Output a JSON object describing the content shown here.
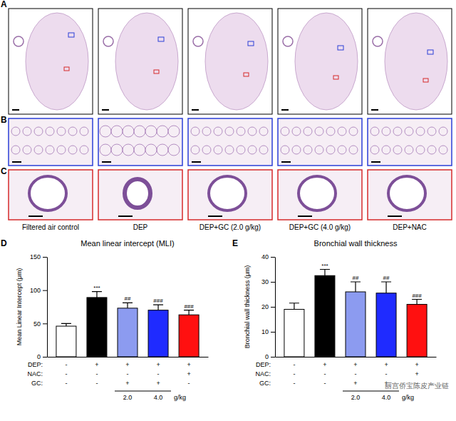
{
  "figure": {
    "panel_labels": [
      "A",
      "B",
      "C",
      "D",
      "E"
    ],
    "group_labels": [
      "Filtered air control",
      "DEP",
      "DEP+GC (2.0 g/kg)",
      "DEP+GC (4.0 g/kg)",
      "DEP+NAC"
    ],
    "watermark": "丽宫侨宝陈皮产业链"
  },
  "chart_data": [
    {
      "type": "bar",
      "title": "Mean linear intercept (MLI)",
      "y_label": "Mean Linear Intercept (μm)",
      "categories": [
        null,
        null,
        null,
        null,
        null
      ],
      "values": [
        46,
        89,
        73,
        70,
        63
      ],
      "errors": [
        4,
        9,
        8,
        8,
        7
      ],
      "significance": [
        null,
        "***",
        "##",
        "###",
        "###"
      ],
      "colors": [
        "#ffffff",
        "#000000",
        "#8c9bf0",
        "#1f2bff",
        "#ff1010"
      ],
      "ylim": [
        0,
        150
      ],
      "yticks": [
        0,
        50,
        100,
        150
      ],
      "treatments": [
        {
          "label": "DEP:",
          "marks": [
            "-",
            "+",
            "+",
            "+",
            "+"
          ]
        },
        {
          "label": "NAC:",
          "marks": [
            "-",
            "-",
            "-",
            "-",
            "+"
          ]
        },
        {
          "label": "GC:",
          "marks": [
            "-",
            "-",
            "+",
            "+",
            "-"
          ]
        }
      ],
      "dose_labels": [
        "2.0",
        "4.0"
      ],
      "dose_unit": "g/kg"
    },
    {
      "type": "bar",
      "title": "Bronchial wall thickness",
      "y_label": "Bronchial wall thickness (μm)",
      "categories": [
        null,
        null,
        null,
        null,
        null
      ],
      "values": [
        19,
        32.5,
        26,
        25.5,
        21
      ],
      "errors": [
        2.5,
        2.5,
        4,
        4.5,
        2
      ],
      "significance": [
        null,
        "***",
        "##",
        "##",
        "###"
      ],
      "colors": [
        "#ffffff",
        "#000000",
        "#8c9bf0",
        "#1f2bff",
        "#ff1010"
      ],
      "ylim": [
        0,
        40
      ],
      "yticks": [
        0,
        10,
        20,
        30,
        40
      ],
      "treatments": [
        {
          "label": "DEP:",
          "marks": [
            "-",
            "+",
            "+",
            "+",
            "+"
          ]
        },
        {
          "label": "NAC:",
          "marks": [
            "-",
            "-",
            "-",
            "-",
            "+"
          ]
        },
        {
          "label": "GC:",
          "marks": [
            "-",
            "-",
            "+",
            "+",
            "-"
          ]
        }
      ],
      "dose_labels": [
        "2.0",
        "4.0"
      ],
      "dose_unit": "g/kg"
    }
  ]
}
